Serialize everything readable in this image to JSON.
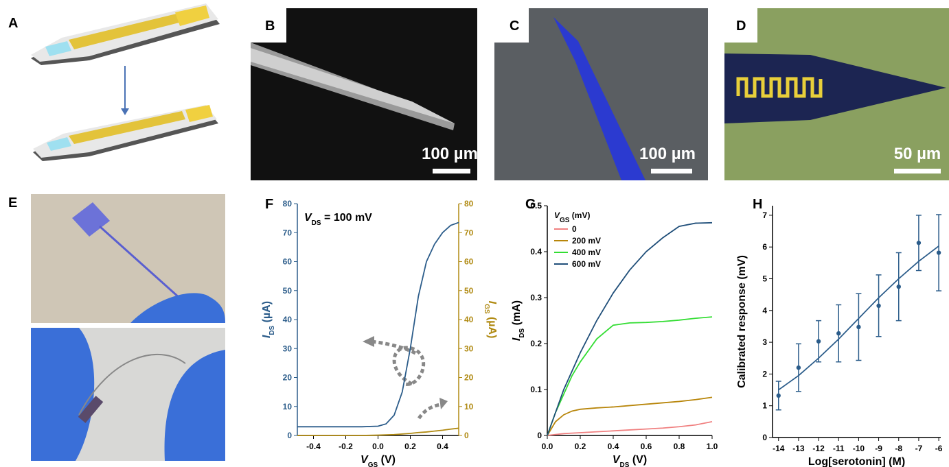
{
  "panel_labels": [
    "A",
    "B",
    "C",
    "D",
    "E",
    "F",
    "G",
    "H"
  ],
  "scale_bars": [
    "100 µm",
    "100 µm",
    "50 µm"
  ],
  "chart_data": [
    {
      "type": "line",
      "annotation": [
        "V",
        "DS",
        " = 100 mV"
      ],
      "x_label": [
        "V",
        "GS",
        " (V)"
      ],
      "y_label": [
        "I",
        "DS",
        " (µA)"
      ],
      "y2_label": [
        "I",
        "GS",
        " (µA)"
      ],
      "x": [
        -0.5,
        -0.4,
        -0.3,
        -0.2,
        -0.1,
        0,
        0.05,
        0.1,
        0.15,
        0.2,
        0.25,
        0.3,
        0.35,
        0.4,
        0.45,
        0.5
      ],
      "xlim": [
        -0.5,
        0.5
      ],
      "xticks": [
        -0.4,
        -0.2,
        {
          "value": 0,
          "label": "0.0"
        },
        0.2,
        0.4
      ],
      "ylim": [
        0,
        80
      ],
      "yticks": [
        0,
        10,
        20,
        30,
        40,
        50,
        60,
        70,
        80
      ],
      "y2lim": [
        0,
        80
      ],
      "y2ticks": [
        0,
        10,
        20,
        30,
        40,
        50,
        60,
        70,
        80
      ],
      "series": [
        {
          "color": "#2b5c8a",
          "values": [
            3,
            3,
            3,
            3,
            3,
            3.2,
            4,
            7,
            15,
            30,
            48,
            60,
            66,
            70,
            72.5,
            73.5
          ]
        },
        {
          "color": "#b08a12",
          "axis": "y2",
          "values": [
            0,
            0,
            0,
            0,
            0,
            0.1,
            0.2,
            0.3,
            0.5,
            0.7,
            1,
            1.2,
            1.5,
            1.8,
            2.2,
            2.5
          ]
        }
      ]
    },
    {
      "type": "line",
      "x_label": [
        "V",
        "DS",
        " (V)"
      ],
      "y_label": [
        "I",
        "DS",
        " (mA)"
      ],
      "legend_title": [
        "V",
        "GS",
        " (mV)"
      ],
      "x": [
        0,
        0.05,
        0.1,
        0.15,
        0.2,
        0.3,
        0.4,
        0.5,
        0.6,
        0.7,
        0.8,
        0.9,
        1.0
      ],
      "xlim": [
        0,
        1
      ],
      "xticks": [
        {
          "value": 0,
          "label": "0.0"
        },
        0.2,
        0.4,
        0.6,
        0.8,
        {
          "value": 1,
          "label": "1.0"
        }
      ],
      "ylim": [
        0,
        0.5
      ],
      "yticks": [
        0,
        0.1,
        0.2,
        0.3,
        0.4,
        0.5
      ],
      "series": [
        {
          "name": "0",
          "color": "#f08080",
          "values": [
            0,
            0.002,
            0.004,
            0.005,
            0.006,
            0.008,
            0.01,
            0.012,
            0.014,
            0.016,
            0.019,
            0.023,
            0.03
          ]
        },
        {
          "name": "200 mV",
          "color": "#b8860b",
          "values": [
            0,
            0.03,
            0.045,
            0.053,
            0.057,
            0.06,
            0.062,
            0.065,
            0.068,
            0.071,
            0.074,
            0.078,
            0.083
          ]
        },
        {
          "name": "400 mV",
          "color": "#33dd33",
          "values": [
            0,
            0.05,
            0.09,
            0.13,
            0.16,
            0.21,
            0.24,
            0.245,
            0.246,
            0.248,
            0.251,
            0.255,
            0.258
          ]
        },
        {
          "name": "600 mV",
          "color": "#1f4e79",
          "values": [
            0,
            0.05,
            0.1,
            0.14,
            0.18,
            0.25,
            0.31,
            0.36,
            0.4,
            0.43,
            0.455,
            0.462,
            0.463
          ]
        }
      ]
    },
    {
      "type": "scatter",
      "x_label": "Log[serotonin] (M)",
      "y_label": "Calibrated response (mV)",
      "x": [
        -14,
        -13,
        -12,
        -11,
        -10,
        -9,
        -8,
        -7,
        -6
      ],
      "xlim": [
        -14.3,
        -5.9
      ],
      "xticks": [
        -14,
        -13,
        -12,
        -11,
        -10,
        -9,
        -8,
        -7,
        -6
      ],
      "ylim": [
        0,
        7.3
      ],
      "yticks": [
        0,
        1,
        2,
        3,
        4,
        5,
        6,
        7
      ],
      "series": [
        {
          "color": "#2b5c8a",
          "values": [
            1.32,
            2.2,
            3.03,
            3.28,
            3.48,
            4.15,
            4.75,
            6.13,
            5.82
          ],
          "errors": [
            0.45,
            0.75,
            0.65,
            0.9,
            1.05,
            0.97,
            1.07,
            0.87,
            1.2
          ]
        }
      ],
      "fit": {
        "color": "#2b5c8a",
        "x": [
          -14,
          -13,
          -12,
          -11,
          -10,
          -9,
          -8,
          -7,
          -6
        ],
        "values": [
          1.5,
          1.95,
          2.5,
          3.1,
          3.75,
          4.4,
          5.0,
          5.55,
          6.03
        ]
      }
    }
  ]
}
